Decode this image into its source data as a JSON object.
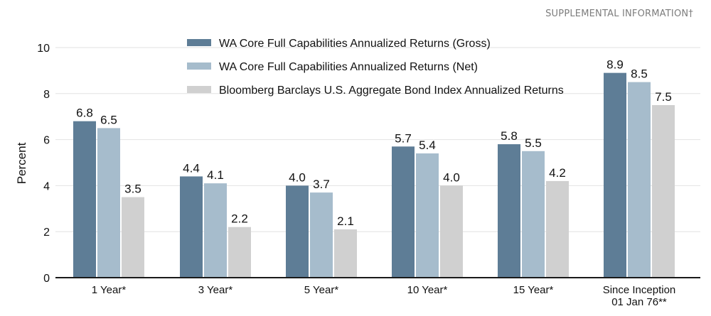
{
  "header": {
    "supplemental": "SUPPLEMENTAL INFORMATION†"
  },
  "chart_data": {
    "type": "bar",
    "title": "",
    "xlabel": "",
    "ylabel": "Percent",
    "ylim": [
      0,
      10
    ],
    "yticks": [
      0,
      2,
      4,
      6,
      8,
      10
    ],
    "grid": true,
    "legend_position": "top-center",
    "categories": [
      [
        "1 Year*"
      ],
      [
        "3 Year*"
      ],
      [
        "5 Year*"
      ],
      [
        "10 Year*"
      ],
      [
        "15 Year*"
      ],
      [
        "Since Inception",
        "01 Jan 76**"
      ]
    ],
    "series": [
      {
        "name": "WA Core Full Capabilities Annualized Returns (Gross)",
        "color": "#5e7d96",
        "values": [
          6.8,
          4.4,
          4.0,
          5.7,
          5.8,
          8.9
        ],
        "labels": [
          "6.8",
          "4.4",
          "4.0",
          "5.7",
          "5.8",
          "8.9"
        ]
      },
      {
        "name": "WA Core Full Capabilities Annualized Returns (Net)",
        "color": "#a6bccc",
        "values": [
          6.5,
          4.1,
          3.7,
          5.4,
          5.5,
          8.5
        ],
        "labels": [
          "6.5",
          "4.1",
          "3.7",
          "5.4",
          "5.5",
          "8.5"
        ]
      },
      {
        "name": "Bloomberg Barclays U.S. Aggregate Bond Index Annualized Returns",
        "color": "#d0d0d0",
        "values": [
          3.5,
          2.2,
          2.1,
          4.0,
          4.2,
          7.5
        ],
        "labels": [
          "3.5",
          "2.2",
          "2.1",
          "4.0",
          "4.2",
          "7.5"
        ]
      }
    ]
  }
}
